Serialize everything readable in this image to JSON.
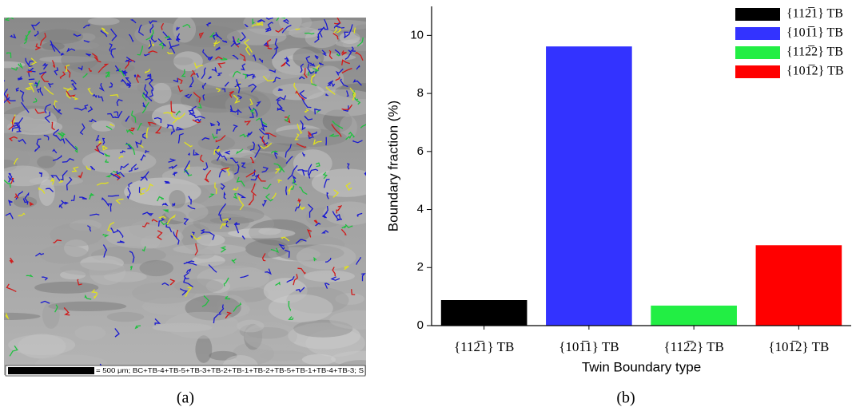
{
  "chart_data": {
    "type": "bar",
    "categories": [
      "{112̅1} TB",
      "{101̅1} TB",
      "{112̅2} TB",
      "{101̅2} TB"
    ],
    "values": [
      0.88,
      9.62,
      0.69,
      2.77
    ],
    "colors": [
      "#000000",
      "#3333ff",
      "#22ee44",
      "#ff0000"
    ],
    "xlabel": "Twin Boundary type",
    "ylabel": "Boundary fraction (%)",
    "ylim": [
      0,
      11
    ],
    "yticks": [
      0,
      2,
      4,
      6,
      8,
      10
    ],
    "legend": "upper right"
  },
  "micrograph": {
    "scale_text": "= 500 μm; BC+TB-4+TB-5+TB-3+TB-2+TB-1+TB-2+TB-5+TB-1+TB-4+TB-3; S"
  },
  "panel_labels": [
    "(a)",
    "(b)"
  ]
}
